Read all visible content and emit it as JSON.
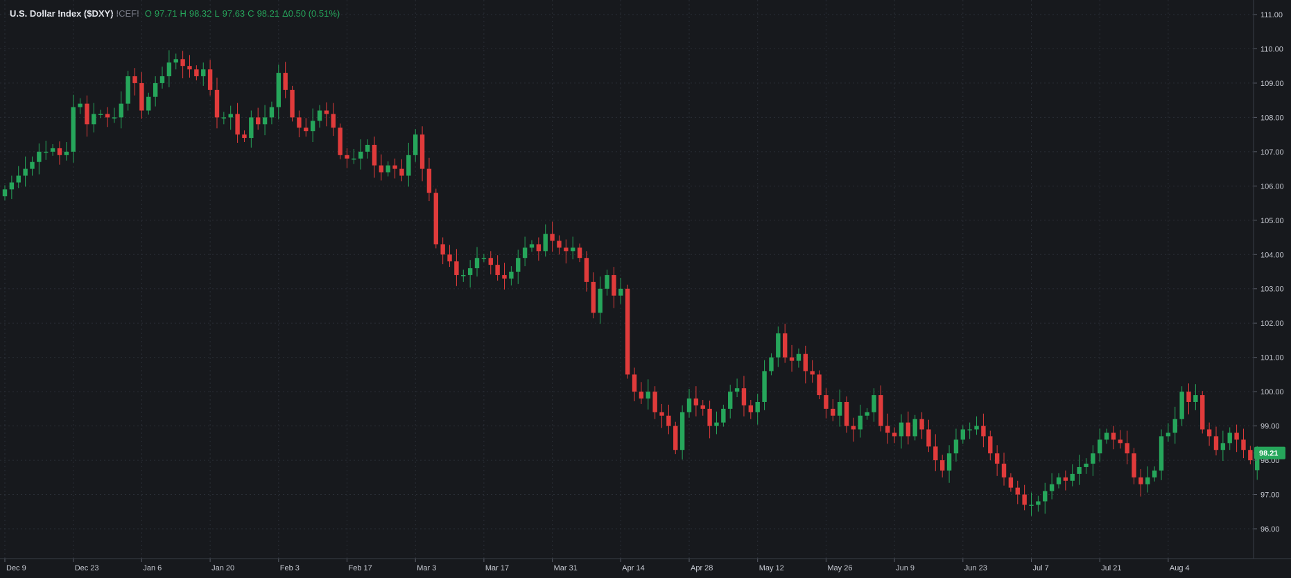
{
  "header": {
    "title": "U.S. Dollar Index ($DXY)",
    "exchange": "ICEFI",
    "open_label": "O",
    "open": "97.71",
    "high_label": "H",
    "high": "98.32",
    "low_label": "L",
    "low": "97.63",
    "close_label": "C",
    "close": "98.21",
    "change": "Δ0.50 (0.51%)"
  },
  "colors": {
    "background": "#17191d",
    "up": "#26a65b",
    "down": "#e03b3b",
    "grid": "#2a2e36",
    "axis_text": "#c8cbd3",
    "last_price_bg": "#26a65b"
  },
  "last_price_label": "98.21",
  "chart_data": {
    "type": "candlestick",
    "title": "U.S. Dollar Index ($DXY)",
    "ylim": [
      95.4,
      111.4
    ],
    "y_ticks": [
      "111.00",
      "110.00",
      "109.00",
      "108.00",
      "107.00",
      "106.00",
      "105.00",
      "104.00",
      "103.00",
      "102.00",
      "101.00",
      "100.00",
      "99.00",
      "98.00",
      "97.00",
      "96.00"
    ],
    "x_ticks": [
      {
        "label": "Dec 9",
        "index": 0
      },
      {
        "label": "Dec 23",
        "index": 10
      },
      {
        "label": "Jan 6",
        "index": 20
      },
      {
        "label": "Jan 20",
        "index": 30
      },
      {
        "label": "Feb 3",
        "index": 40
      },
      {
        "label": "Feb 17",
        "index": 50
      },
      {
        "label": "Mar 3",
        "index": 60
      },
      {
        "label": "Mar 17",
        "index": 70
      },
      {
        "label": "Mar 31",
        "index": 80
      },
      {
        "label": "Apr 14",
        "index": 90
      },
      {
        "label": "Apr 28",
        "index": 100
      },
      {
        "label": "May 12",
        "index": 110
      },
      {
        "label": "May 26",
        "index": 120
      },
      {
        "label": "Jun 9",
        "index": 130
      },
      {
        "label": "Jun 23",
        "index": 140
      },
      {
        "label": "Jul 7",
        "index": 150
      },
      {
        "label": "Jul 21",
        "index": 160
      },
      {
        "label": "Aug 4",
        "index": 170
      }
    ],
    "closes": [
      105.9,
      106.1,
      106.3,
      106.5,
      106.7,
      107.0,
      107.0,
      107.1,
      106.9,
      107.0,
      108.3,
      108.4,
      107.8,
      108.1,
      108.1,
      108.0,
      108.0,
      108.4,
      109.2,
      109.0,
      108.2,
      108.6,
      109.0,
      109.2,
      109.6,
      109.7,
      109.5,
      109.4,
      109.2,
      109.4,
      108.8,
      108.0,
      108.0,
      108.1,
      107.5,
      107.4,
      108.0,
      107.8,
      108.0,
      108.3,
      109.3,
      108.8,
      108.0,
      107.7,
      107.6,
      107.9,
      108.2,
      108.1,
      107.7,
      106.9,
      106.8,
      106.8,
      107.0,
      107.2,
      106.6,
      106.4,
      106.6,
      106.5,
      106.3,
      106.9,
      107.5,
      106.5,
      105.8,
      104.3,
      104.0,
      103.8,
      103.4,
      103.4,
      103.6,
      103.9,
      103.9,
      103.7,
      103.4,
      103.3,
      103.5,
      103.9,
      104.2,
      104.3,
      104.1,
      104.6,
      104.4,
      104.2,
      104.1,
      104.2,
      103.9,
      103.2,
      102.3,
      103.0,
      103.4,
      102.8,
      103.0,
      100.5,
      100.0,
      99.8,
      100.0,
      99.4,
      99.3,
      99.0,
      98.3,
      99.4,
      99.8,
      99.6,
      99.5,
      99.0,
      99.1,
      99.5,
      100.0,
      100.1,
      99.6,
      99.4,
      99.7,
      100.6,
      101.0,
      101.7,
      101.0,
      100.9,
      101.1,
      100.6,
      100.5,
      99.9,
      99.5,
      99.3,
      99.7,
      99.0,
      98.9,
      99.3,
      99.4,
      99.9,
      99.0,
      98.8,
      98.7,
      99.1,
      98.7,
      99.2,
      98.9,
      98.4,
      98.0,
      97.7,
      98.2,
      98.6,
      98.9,
      98.9,
      99.0,
      98.7,
      98.2,
      97.9,
      97.5,
      97.2,
      97.0,
      96.7,
      96.7,
      96.8,
      97.1,
      97.3,
      97.5,
      97.4,
      97.6,
      97.8,
      97.9,
      98.2,
      98.6,
      98.8,
      98.6,
      98.5,
      98.2,
      97.5,
      97.3,
      97.5,
      97.7,
      98.7,
      98.8,
      99.2,
      100.0,
      99.7,
      99.9,
      98.9,
      98.7,
      98.3,
      98.5,
      98.8,
      98.6,
      98.3,
      98.0,
      98.21
    ]
  }
}
